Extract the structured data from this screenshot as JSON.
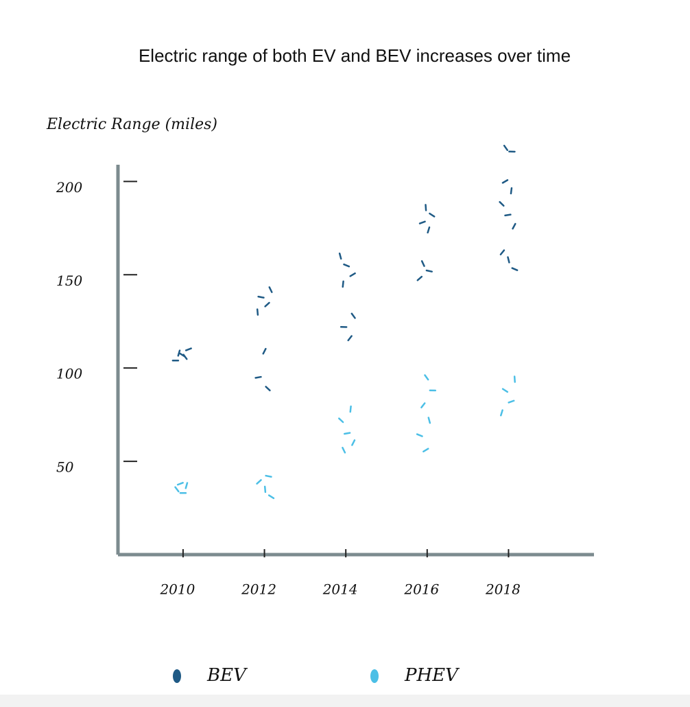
{
  "chart_data": {
    "type": "scatter",
    "title": "Electric range of both EV and BEV increases over time",
    "y_label": "Electric Range (miles)",
    "xlim": [
      2008.4,
      2020.1
    ],
    "xticks": [
      2010,
      2012,
      2014,
      2016,
      2018
    ],
    "ylim": [
      0,
      220
    ],
    "yticks": [
      50,
      100,
      150,
      200
    ],
    "series": [
      {
        "name": "BEV",
        "color": "#1f5a85",
        "x": [
          2010,
          2010,
          2010,
          2010,
          2010,
          2012,
          2012,
          2012,
          2012,
          2012,
          2012,
          2012,
          2014,
          2014,
          2014,
          2014,
          2014,
          2014,
          2014,
          2016,
          2016,
          2016,
          2016,
          2016,
          2016,
          2016,
          2018,
          2018,
          2018,
          2018,
          2018,
          2018,
          2018,
          2018,
          2018,
          2018
        ],
        "values": [
          104,
          106,
          108,
          110,
          107,
          130,
          134,
          138,
          142,
          109,
          95,
          89,
          145,
          150,
          155,
          160,
          116,
          122,
          128,
          174,
          178,
          182,
          186,
          148,
          152,
          156,
          176,
          182,
          188,
          195,
          200,
          153,
          158,
          162,
          216,
          218
        ]
      },
      {
        "name": "PHEV",
        "color": "#4cbfe6",
        "x": [
          2010,
          2010,
          2010,
          2010,
          2012,
          2012,
          2012,
          2012,
          2014,
          2014,
          2014,
          2014,
          2014,
          2016,
          2016,
          2016,
          2016,
          2016,
          2016,
          2018,
          2018,
          2018,
          2018
        ],
        "values": [
          33,
          35,
          37,
          38,
          31,
          35,
          39,
          42,
          56,
          60,
          65,
          72,
          78,
          56,
          64,
          72,
          80,
          88,
          95,
          76,
          82,
          88,
          94
        ]
      }
    ]
  }
}
